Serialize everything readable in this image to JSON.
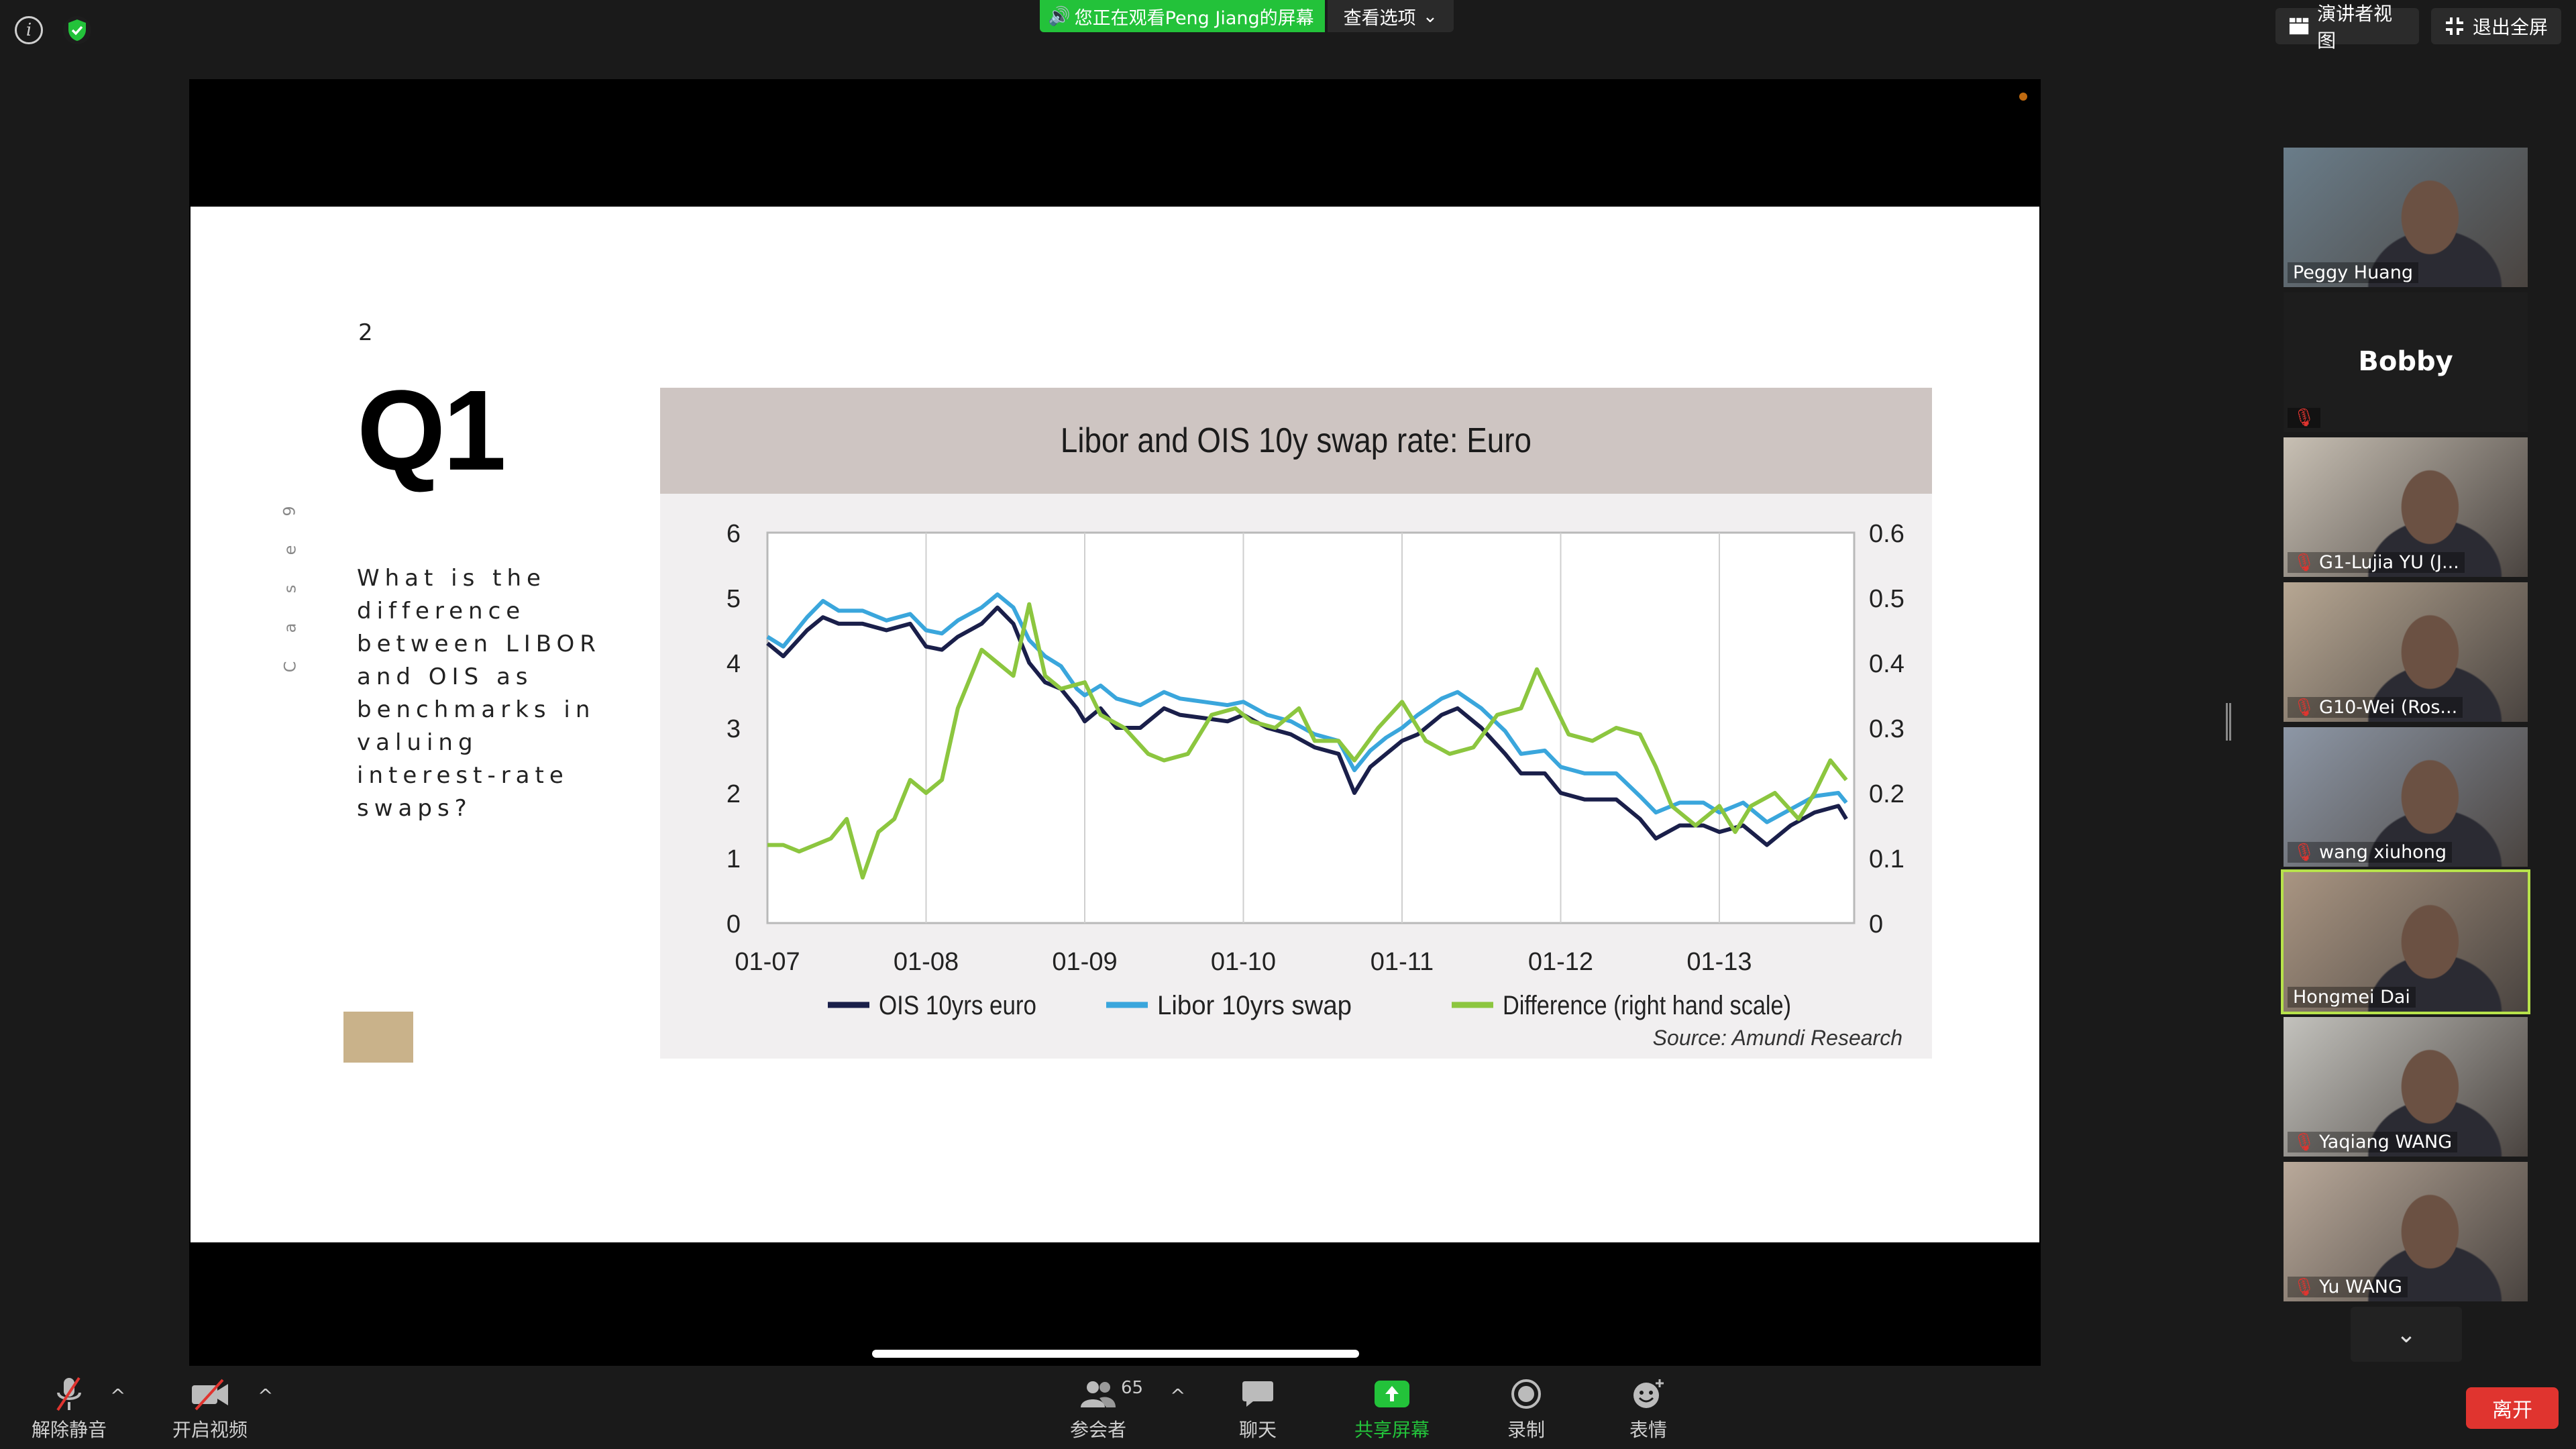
{
  "top": {
    "banner_text": "您正在观看Peng Jiang的屏幕",
    "view_options": "查看选项",
    "presenter_view": "演讲者视图",
    "exit_fullscreen": "退出全屏"
  },
  "slide": {
    "number": "2",
    "title": "Q1",
    "vertical_text": [
      "C",
      "a",
      "s",
      "e",
      "9"
    ],
    "question": "What is the difference between LIBOR and OIS as benchmarks in valuing interest-rate swaps?",
    "chart_title": "Libor and OIS 10y swap rate: Euro",
    "source": "Source: Amundi Research"
  },
  "chart_data": {
    "type": "line",
    "title": "Libor and OIS 10y swap rate: Euro",
    "x_ticks": [
      "01-07",
      "01-08",
      "01-09",
      "01-10",
      "01-11",
      "01-12",
      "01-13"
    ],
    "y_left_ticks": [
      "0",
      "1",
      "2",
      "3",
      "4",
      "5",
      "6"
    ],
    "y_right_ticks": [
      "0",
      "0.1",
      "0.2",
      "0.3",
      "0.4",
      "0.5",
      "0.6"
    ],
    "ylim_left": [
      0,
      6
    ],
    "ylim_right": [
      0,
      0.6
    ],
    "xlim": [
      2007.0,
      2013.85
    ],
    "legend_placement": "bottom",
    "source": "Source: Amundi Research",
    "series": [
      {
        "name": "OIS 10yrs euro",
        "color": "#1a1f4a",
        "axis": "left",
        "x": [
          2007.0,
          2007.1,
          2007.25,
          2007.35,
          2007.45,
          2007.6,
          2007.75,
          2007.9,
          2008.0,
          2008.1,
          2008.2,
          2008.35,
          2008.45,
          2008.55,
          2008.65,
          2008.75,
          2008.85,
          2008.95,
          2009.0,
          2009.1,
          2009.2,
          2009.35,
          2009.5,
          2009.6,
          2009.75,
          2009.9,
          2010.0,
          2010.15,
          2010.3,
          2010.45,
          2010.6,
          2010.7,
          2010.8,
          2010.9,
          2011.0,
          2011.1,
          2011.25,
          2011.35,
          2011.5,
          2011.65,
          2011.75,
          2011.9,
          2012.0,
          2012.15,
          2012.25,
          2012.35,
          2012.5,
          2012.6,
          2012.75,
          2012.9,
          2013.0,
          2013.15,
          2013.3,
          2013.45,
          2013.6,
          2013.75,
          2013.8
        ],
        "y": [
          4.3,
          4.1,
          4.5,
          4.7,
          4.6,
          4.6,
          4.5,
          4.6,
          4.25,
          4.2,
          4.4,
          4.6,
          4.85,
          4.6,
          4.0,
          3.7,
          3.6,
          3.3,
          3.1,
          3.3,
          3.0,
          3.0,
          3.3,
          3.2,
          3.15,
          3.1,
          3.2,
          3.0,
          2.9,
          2.7,
          2.6,
          2.0,
          2.4,
          2.6,
          2.8,
          2.9,
          3.2,
          3.3,
          3.0,
          2.6,
          2.3,
          2.3,
          2.0,
          1.9,
          1.9,
          1.9,
          1.6,
          1.3,
          1.5,
          1.5,
          1.4,
          1.5,
          1.2,
          1.5,
          1.7,
          1.8,
          1.6
        ]
      },
      {
        "name": "Libor 10yrs swap",
        "color": "#3aa6dc",
        "axis": "left",
        "x": [
          2007.0,
          2007.1,
          2007.25,
          2007.35,
          2007.45,
          2007.6,
          2007.75,
          2007.9,
          2008.0,
          2008.1,
          2008.2,
          2008.35,
          2008.45,
          2008.55,
          2008.65,
          2008.75,
          2008.85,
          2008.95,
          2009.0,
          2009.1,
          2009.2,
          2009.35,
          2009.5,
          2009.6,
          2009.75,
          2009.9,
          2010.0,
          2010.15,
          2010.3,
          2010.45,
          2010.6,
          2010.7,
          2010.8,
          2010.9,
          2011.0,
          2011.1,
          2011.25,
          2011.35,
          2011.5,
          2011.65,
          2011.75,
          2011.9,
          2012.0,
          2012.15,
          2012.25,
          2012.35,
          2012.5,
          2012.6,
          2012.75,
          2012.9,
          2013.0,
          2013.15,
          2013.3,
          2013.45,
          2013.6,
          2013.75,
          2013.8
        ],
        "y": [
          4.4,
          4.25,
          4.7,
          4.95,
          4.8,
          4.8,
          4.65,
          4.75,
          4.5,
          4.45,
          4.65,
          4.85,
          5.05,
          4.85,
          4.35,
          4.1,
          3.95,
          3.6,
          3.5,
          3.65,
          3.45,
          3.35,
          3.55,
          3.45,
          3.4,
          3.35,
          3.4,
          3.2,
          3.1,
          2.9,
          2.8,
          2.35,
          2.65,
          2.85,
          3.0,
          3.2,
          3.45,
          3.55,
          3.3,
          2.95,
          2.6,
          2.65,
          2.4,
          2.3,
          2.3,
          2.3,
          1.95,
          1.7,
          1.85,
          1.85,
          1.7,
          1.85,
          1.55,
          1.75,
          1.95,
          2.0,
          1.85
        ]
      },
      {
        "name": "Difference (right hand scale)",
        "color": "#8cc63f",
        "axis": "right",
        "x": [
          2007.0,
          2007.1,
          2007.2,
          2007.3,
          2007.4,
          2007.5,
          2007.6,
          2007.7,
          2007.8,
          2007.9,
          2008.0,
          2008.1,
          2008.2,
          2008.35,
          2008.45,
          2008.55,
          2008.65,
          2008.75,
          2008.85,
          2009.0,
          2009.1,
          2009.25,
          2009.4,
          2009.5,
          2009.65,
          2009.8,
          2009.95,
          2010.05,
          2010.2,
          2010.35,
          2010.45,
          2010.6,
          2010.7,
          2010.85,
          2011.0,
          2011.15,
          2011.3,
          2011.45,
          2011.6,
          2011.75,
          2011.85,
          2011.95,
          2012.05,
          2012.2,
          2012.35,
          2012.5,
          2012.6,
          2012.7,
          2012.85,
          2013.0,
          2013.1,
          2013.2,
          2013.35,
          2013.5,
          2013.6,
          2013.7,
          2013.8
        ],
        "y": [
          0.12,
          0.12,
          0.11,
          0.12,
          0.13,
          0.16,
          0.07,
          0.14,
          0.16,
          0.22,
          0.2,
          0.22,
          0.33,
          0.42,
          0.4,
          0.38,
          0.49,
          0.38,
          0.36,
          0.37,
          0.32,
          0.3,
          0.26,
          0.25,
          0.26,
          0.32,
          0.33,
          0.31,
          0.3,
          0.33,
          0.28,
          0.28,
          0.25,
          0.3,
          0.34,
          0.28,
          0.26,
          0.27,
          0.32,
          0.33,
          0.39,
          0.34,
          0.29,
          0.28,
          0.3,
          0.29,
          0.24,
          0.18,
          0.15,
          0.18,
          0.14,
          0.18,
          0.2,
          0.16,
          0.2,
          0.25,
          0.22
        ]
      }
    ]
  },
  "participants": [
    {
      "name": "Peggy Huang",
      "muted": false,
      "video": true,
      "bg": "#6a7d8a"
    },
    {
      "name": "Bobby",
      "muted": true,
      "video": false,
      "bg": "#1d1d1d"
    },
    {
      "name": "G1-Lujia YU (J...",
      "muted": true,
      "video": true,
      "bg": "#c8c0b4"
    },
    {
      "name": "G10-Wei (Ros...",
      "muted": true,
      "video": true,
      "bg": "#b7a793"
    },
    {
      "name": "wang xiuhong",
      "muted": true,
      "video": true,
      "bg": "#8d97a6"
    },
    {
      "name": "Hongmei Dai",
      "muted": false,
      "video": true,
      "bg": "#a99582"
    },
    {
      "name": "Yaqiang WANG",
      "muted": true,
      "video": true,
      "bg": "#c3c2bd"
    },
    {
      "name": "Yu WANG",
      "muted": true,
      "video": true,
      "bg": "#b9a99a"
    }
  ],
  "toolbar": {
    "unmute": "解除静音",
    "start_video": "开启视频",
    "participants": "参会者",
    "participants_count": "65",
    "chat": "聊天",
    "share": "共享屏幕",
    "record": "录制",
    "reactions": "表情",
    "leave": "离开"
  }
}
